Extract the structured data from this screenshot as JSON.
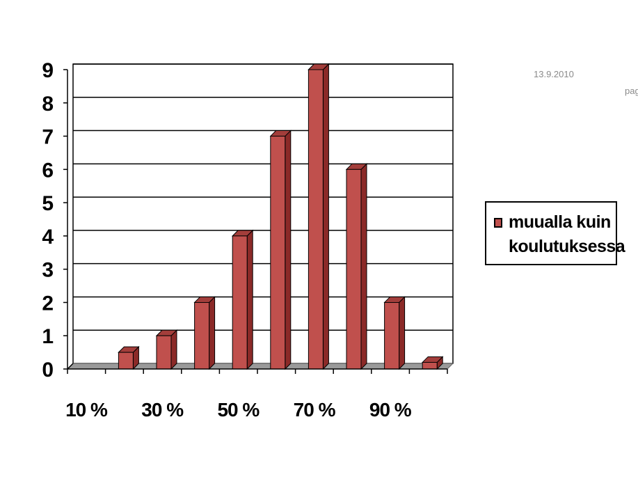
{
  "header": {
    "date": "13.9.2010",
    "page_fragment": "pag"
  },
  "colors": {
    "bar_front": "#c0504d",
    "bar_side": "#8b2a28",
    "bar_top": "#a33e3b",
    "grid": "#000000",
    "floor": "#9a9a9a"
  },
  "legend": {
    "line1": "muualla kuin",
    "line2": "koulutuksessa"
  },
  "chart_data": {
    "type": "bar",
    "style": "3d-column",
    "y_ticks": [
      "0",
      "1",
      "2",
      "3",
      "4",
      "5",
      "6",
      "7",
      "8",
      "9"
    ],
    "ylim": [
      0,
      9
    ],
    "x_tick_labels": [
      "10 %",
      "30 %",
      "50 %",
      "70 %",
      "90 %"
    ],
    "values": [
      0,
      0.5,
      1,
      2,
      4,
      7,
      9,
      6,
      2,
      0.2
    ],
    "series": [
      {
        "name": "muualla kuin koulutuksessa",
        "values": [
          0,
          0.5,
          1,
          2,
          4,
          7,
          9,
          6,
          2,
          0.2
        ]
      }
    ],
    "grid": true,
    "legend_position": "right"
  }
}
